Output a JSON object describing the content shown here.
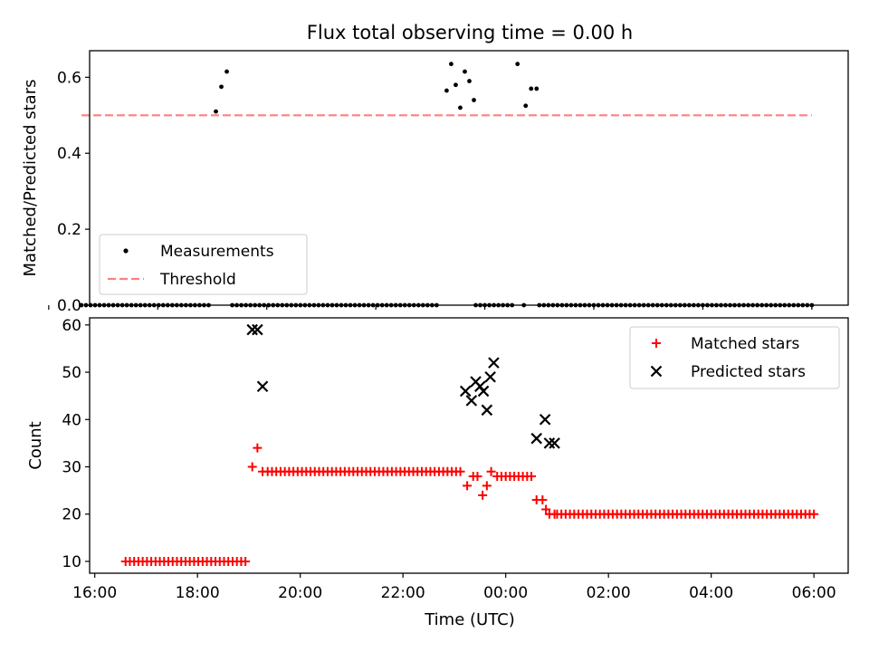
{
  "figure": {
    "title": "Flux total observing time = 0.00 h",
    "xlabel": "Time (UTC)"
  },
  "chart_data": [
    {
      "type": "scatter",
      "panel": "top",
      "ylabel": "Matched/Predicted stars",
      "xlim": [
        "16:45",
        "06:40"
      ],
      "ylim": [
        0,
        0.67
      ],
      "y_ticks": [
        "0.0",
        "0.2",
        "0.4",
        "0.6"
      ],
      "y_tick_values": [
        0.0,
        0.2,
        0.4,
        0.6
      ],
      "grid": false,
      "legend_position": "lower-left",
      "series": [
        {
          "name": "Measurements",
          "marker": "dot",
          "color": "#000000",
          "points": [
            [
              "19:04",
              0.51
            ],
            [
              "19:10",
              0.575
            ],
            [
              "19:16",
              0.615
            ],
            [
              "23:18",
              0.565
            ],
            [
              "23:23",
              0.635
            ],
            [
              "23:28",
              0.58
            ],
            [
              "23:33",
              0.52
            ],
            [
              "23:38",
              0.615
            ],
            [
              "23:43",
              0.59
            ],
            [
              "23:48",
              0.54
            ],
            [
              "00:36",
              0.635
            ],
            [
              "00:45",
              0.525
            ],
            [
              "00:51",
              0.57
            ],
            [
              "00:57",
              0.57
            ]
          ],
          "zero_ranges": [
            [
              "16:36",
              "18:57",
              5
            ],
            [
              "19:22",
              "23:09",
              5
            ],
            [
              "23:50",
              "00:30",
              5
            ],
            [
              "00:43",
              "00:43",
              5
            ],
            [
              "01:00",
              "06:00",
              5
            ]
          ]
        },
        {
          "name": "Threshold",
          "style": "dashed",
          "color": "#ff7f7f",
          "y": 0.5,
          "x_range": [
            "16:36",
            "06:00"
          ]
        }
      ]
    },
    {
      "type": "scatter",
      "panel": "bottom",
      "ylabel": "Count",
      "xlim": [
        "15:54",
        "06:40"
      ],
      "ylim": [
        7.5,
        61.5
      ],
      "y_ticks": [
        "10",
        "20",
        "30",
        "40",
        "50",
        "60"
      ],
      "y_tick_values": [
        10,
        20,
        30,
        40,
        50,
        60
      ],
      "x_ticks": [
        "16:00",
        "18:00",
        "20:00",
        "22:00",
        "00:00",
        "02:00",
        "04:00",
        "06:00"
      ],
      "grid": false,
      "legend_position": "top-right",
      "series": [
        {
          "name": "Matched stars",
          "marker": "plus",
          "color": "#ff0000",
          "segments": [
            [
              "16:36",
              "18:57",
              10,
              5
            ],
            [
              "19:22",
              "23:09",
              29,
              5
            ],
            [
              "23:50",
              "00:30",
              28,
              5
            ],
            [
              "01:00",
              "06:00",
              20,
              5
            ]
          ],
          "points": [
            [
              "19:04",
              30
            ],
            [
              "19:10",
              34
            ],
            [
              "19:16",
              29
            ],
            [
              "23:15",
              26
            ],
            [
              "23:22",
              28
            ],
            [
              "23:27",
              28
            ],
            [
              "23:33",
              24
            ],
            [
              "23:38",
              26
            ],
            [
              "23:43",
              29
            ],
            [
              "00:36",
              23
            ],
            [
              "00:43",
              23
            ],
            [
              "00:47",
              21
            ],
            [
              "00:51",
              20
            ],
            [
              "00:57",
              20
            ]
          ]
        },
        {
          "name": "Predicted stars",
          "marker": "x",
          "color": "#000000",
          "points": [
            [
              "19:04",
              59
            ],
            [
              "19:10",
              59
            ],
            [
              "19:16",
              47
            ],
            [
              "23:13",
              46
            ],
            [
              "23:20",
              44
            ],
            [
              "23:25",
              48
            ],
            [
              "23:30",
              47
            ],
            [
              "23:34",
              46
            ],
            [
              "23:38",
              42
            ],
            [
              "23:42",
              49
            ],
            [
              "23:46",
              52
            ],
            [
              "00:36",
              36
            ],
            [
              "00:46",
              40
            ],
            [
              "00:51",
              35
            ],
            [
              "00:57",
              35
            ]
          ]
        }
      ]
    }
  ]
}
